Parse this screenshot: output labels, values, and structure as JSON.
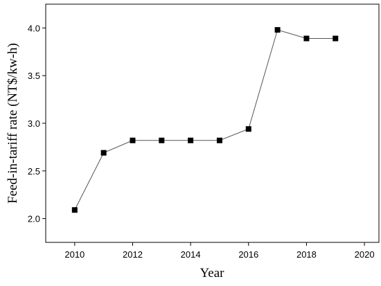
{
  "chart_data": {
    "type": "line",
    "x_label": "Year",
    "y_label": "Feed-in-tariff rate (NT$/kw-h)",
    "x": [
      2010,
      2011,
      2012,
      2013,
      2014,
      2015,
      2016,
      2017,
      2018,
      2019
    ],
    "series": [
      {
        "color": "#000000",
        "values": [
          2.09,
          2.69,
          2.82,
          2.82,
          2.82,
          2.82,
          2.94,
          3.98,
          3.89,
          3.89
        ]
      }
    ],
    "xlim": [
      2009,
      2020.5
    ],
    "xticks": [
      2010,
      2012,
      2014,
      2016,
      2018,
      2020
    ],
    "ylim": [
      1.75,
      4.25
    ],
    "yticks": [
      {
        "value": 2,
        "label": "2.0"
      },
      {
        "value": 2.5,
        "label": "2.5"
      },
      {
        "value": 3,
        "label": "3.0"
      },
      {
        "value": 3.5,
        "label": "3.5"
      },
      {
        "value": 4,
        "label": "4.0"
      }
    ]
  }
}
